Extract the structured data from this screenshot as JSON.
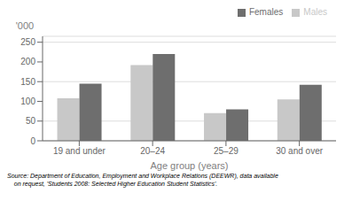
{
  "chart_data": {
    "type": "bar",
    "categories": [
      "19 and under",
      "20–24",
      "25–29",
      "30 and over"
    ],
    "series": [
      {
        "name": "Males",
        "color": "#c8c8c8",
        "values": [
          108,
          192,
          70,
          105
        ]
      },
      {
        "name": "Females",
        "color": "#6e6e6e",
        "values": [
          145,
          220,
          80,
          142
        ]
      }
    ],
    "xlabel": "Age group (years)",
    "ylabel": "'000",
    "ylim": [
      0,
      265
    ],
    "yticks": [
      0,
      50,
      100,
      150,
      200,
      250
    ],
    "grid": true,
    "legend": "upper right",
    "annotations": [
      "Source: Department of Education, Employment and Workplace Relations (DEEWR), data available\n    on request, 'Students 2008: Selected Higher Education Student Statistics'."
    ]
  }
}
